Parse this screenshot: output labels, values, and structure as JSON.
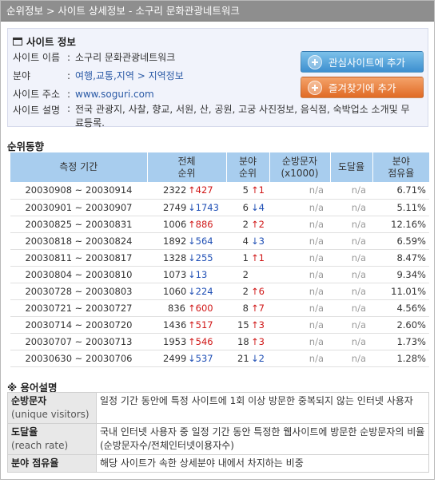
{
  "breadcrumb": "순위정보 > 사이트 상세정보 - 소구리 문화관광네트워크",
  "site_info": {
    "title": "사이트 정보",
    "name_label": "사이트 이름",
    "name": "소구리 문화관광네트워크",
    "category_label": "분야",
    "category_main": "여행,교통,지역",
    "category_arrow": ">",
    "category_sub": "지역정보",
    "url_label": "사이트 주소",
    "url": "www.soguri.com",
    "desc_label": "사이트 설명",
    "desc": "전국 관광지, 사찰, 향교, 서원, 산, 공원, 고궁 사진정보, 음식점, 숙박업소 소개및 무료등록.",
    "separator": ":",
    "btn_interest": "관심사이트에 추가",
    "btn_favorite": "즐겨찾기에 추가"
  },
  "ranking": {
    "title": "순위동향",
    "headers": {
      "period": "측정 기간",
      "total_1": "전체",
      "total_2": "순위",
      "field_1": "분야",
      "field_2": "순위",
      "visitors_1": "순방문자",
      "visitors_2": "(x1000)",
      "reach": "도달율",
      "share_1": "분야",
      "share_2": "점유율"
    },
    "rows": [
      {
        "period": "20030908 ~ 20030914",
        "total": "2322",
        "total_dir": "up",
        "total_arrow": "↑",
        "total_change": "427",
        "field": "5",
        "field_dir": "up",
        "field_arrow": "↑",
        "field_change": "1",
        "visitors": "n/a",
        "reach": "n/a",
        "share": "6.71%"
      },
      {
        "period": "20030901 ~ 20030907",
        "total": "2749",
        "total_dir": "down",
        "total_arrow": "↓",
        "total_change": "1743",
        "field": "6",
        "field_dir": "down",
        "field_arrow": "↓",
        "field_change": "4",
        "visitors": "n/a",
        "reach": "n/a",
        "share": "5.11%"
      },
      {
        "period": "20030825 ~ 20030831",
        "total": "1006",
        "total_dir": "up",
        "total_arrow": "↑",
        "total_change": "886",
        "field": "2",
        "field_dir": "up",
        "field_arrow": "↑",
        "field_change": "2",
        "visitors": "n/a",
        "reach": "n/a",
        "share": "12.16%"
      },
      {
        "period": "20030818 ~ 20030824",
        "total": "1892",
        "total_dir": "down",
        "total_arrow": "↓",
        "total_change": "564",
        "field": "4",
        "field_dir": "down",
        "field_arrow": "↓",
        "field_change": "3",
        "visitors": "n/a",
        "reach": "n/a",
        "share": "6.59%"
      },
      {
        "period": "20030811 ~ 20030817",
        "total": "1328",
        "total_dir": "down",
        "total_arrow": "↓",
        "total_change": "255",
        "field": "1",
        "field_dir": "up",
        "field_arrow": "↑",
        "field_change": "1",
        "visitors": "n/a",
        "reach": "n/a",
        "share": "8.47%"
      },
      {
        "period": "20030804 ~ 20030810",
        "total": "1073",
        "total_dir": "down",
        "total_arrow": "↓",
        "total_change": "13",
        "field": "2",
        "field_dir": "",
        "field_arrow": "",
        "field_change": "",
        "visitors": "n/a",
        "reach": "n/a",
        "share": "9.34%"
      },
      {
        "period": "20030728 ~ 20030803",
        "total": "1060",
        "total_dir": "down",
        "total_arrow": "↓",
        "total_change": "224",
        "field": "2",
        "field_dir": "up",
        "field_arrow": "↑",
        "field_change": "6",
        "visitors": "n/a",
        "reach": "n/a",
        "share": "11.01%"
      },
      {
        "period": "20030721 ~ 20030727",
        "total": "836",
        "total_dir": "up",
        "total_arrow": "↑",
        "total_change": "600",
        "field": "8",
        "field_dir": "up",
        "field_arrow": "↑",
        "field_change": "7",
        "visitors": "n/a",
        "reach": "n/a",
        "share": "4.56%"
      },
      {
        "period": "20030714 ~ 20030720",
        "total": "1436",
        "total_dir": "up",
        "total_arrow": "↑",
        "total_change": "517",
        "field": "15",
        "field_dir": "up",
        "field_arrow": "↑",
        "field_change": "3",
        "visitors": "n/a",
        "reach": "n/a",
        "share": "2.60%"
      },
      {
        "period": "20030707 ~ 20030713",
        "total": "1953",
        "total_dir": "up",
        "total_arrow": "↑",
        "total_change": "546",
        "field": "18",
        "field_dir": "up",
        "field_arrow": "↑",
        "field_change": "3",
        "visitors": "n/a",
        "reach": "n/a",
        "share": "1.73%"
      },
      {
        "period": "20030630 ~ 20030706",
        "total": "2499",
        "total_dir": "down",
        "total_arrow": "↓",
        "total_change": "537",
        "field": "21",
        "field_dir": "down",
        "field_arrow": "↓",
        "field_change": "2",
        "visitors": "n/a",
        "reach": "n/a",
        "share": "1.28%"
      }
    ]
  },
  "glossary": {
    "title": "※ 용어설명",
    "terms": [
      {
        "term": "순방문자",
        "sub": "(unique visitors)",
        "def": "일정 기간 동안에 특정 사이트에 1회 이상 방문한 중복되지 않는 인터넷 사용자"
      },
      {
        "term": "도달율",
        "sub": "(reach rate)",
        "def": "국내 인터넷 사용자 중 일정 기간 동안 특정한 웹사이트에 방문한 순방문자의 비율 (순방문자수/전체인터넷이용자수)"
      },
      {
        "term": "분야 점유율",
        "sub": "",
        "def": "해당 사이트가 속한 상세분야 내에서 차지하는 비중"
      }
    ]
  },
  "colors": {
    "up": "#d01818",
    "down": "#1f4fb5",
    "header_bg": "#a8cdee",
    "titlebar": "#8e8e8e"
  }
}
